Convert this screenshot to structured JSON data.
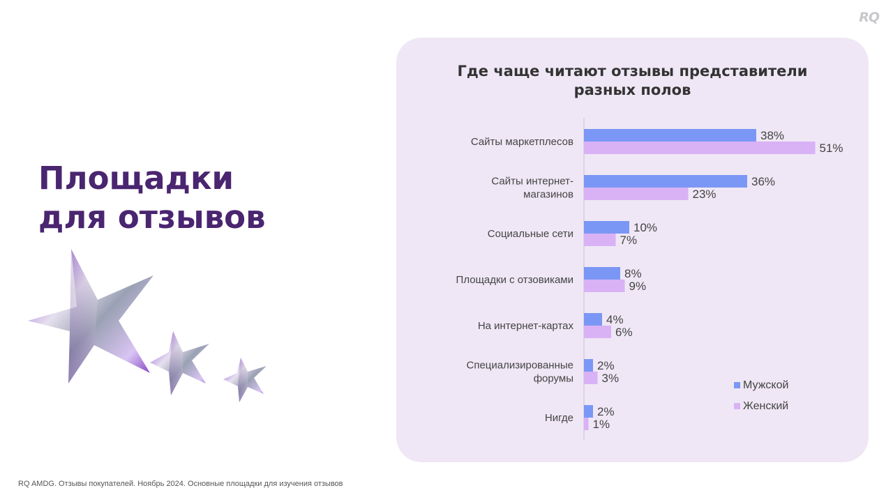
{
  "logo": "RQ",
  "headline": [
    "Площадки",
    "для отзывов"
  ],
  "footer": "RQ AMDG. Отзывы покупателей. Ноябрь 2024. Основные площадки для изучения отзывов",
  "colors": {
    "male": "#7b97f5",
    "female": "#d9b2f6",
    "panel": "#efe7f5",
    "headline": "#4a2570"
  },
  "chart_data": {
    "type": "bar",
    "orientation": "horizontal",
    "title": "Где чаще читают отзывы представители разных полов",
    "title_lines": [
      "Где чаще читают отзывы представители",
      "разных полов"
    ],
    "categories": [
      [
        "Сайты маркетплесов"
      ],
      [
        "Сайты интернет-",
        "магазинов"
      ],
      [
        "Социальные сети"
      ],
      [
        "Площадки с отзовиками"
      ],
      [
        "На интернет-картах"
      ],
      [
        "Специализированные",
        "форумы"
      ],
      [
        "Нигде"
      ]
    ],
    "series": [
      {
        "name": "Мужской",
        "values": [
          38,
          36,
          10,
          8,
          4,
          2,
          2
        ],
        "color": "#7b97f5"
      },
      {
        "name": "Женский",
        "values": [
          51,
          23,
          7,
          9,
          6,
          3,
          1
        ],
        "color": "#d9b2f6"
      }
    ],
    "value_suffix": "%",
    "legend": "bottom-right",
    "grid": false
  }
}
